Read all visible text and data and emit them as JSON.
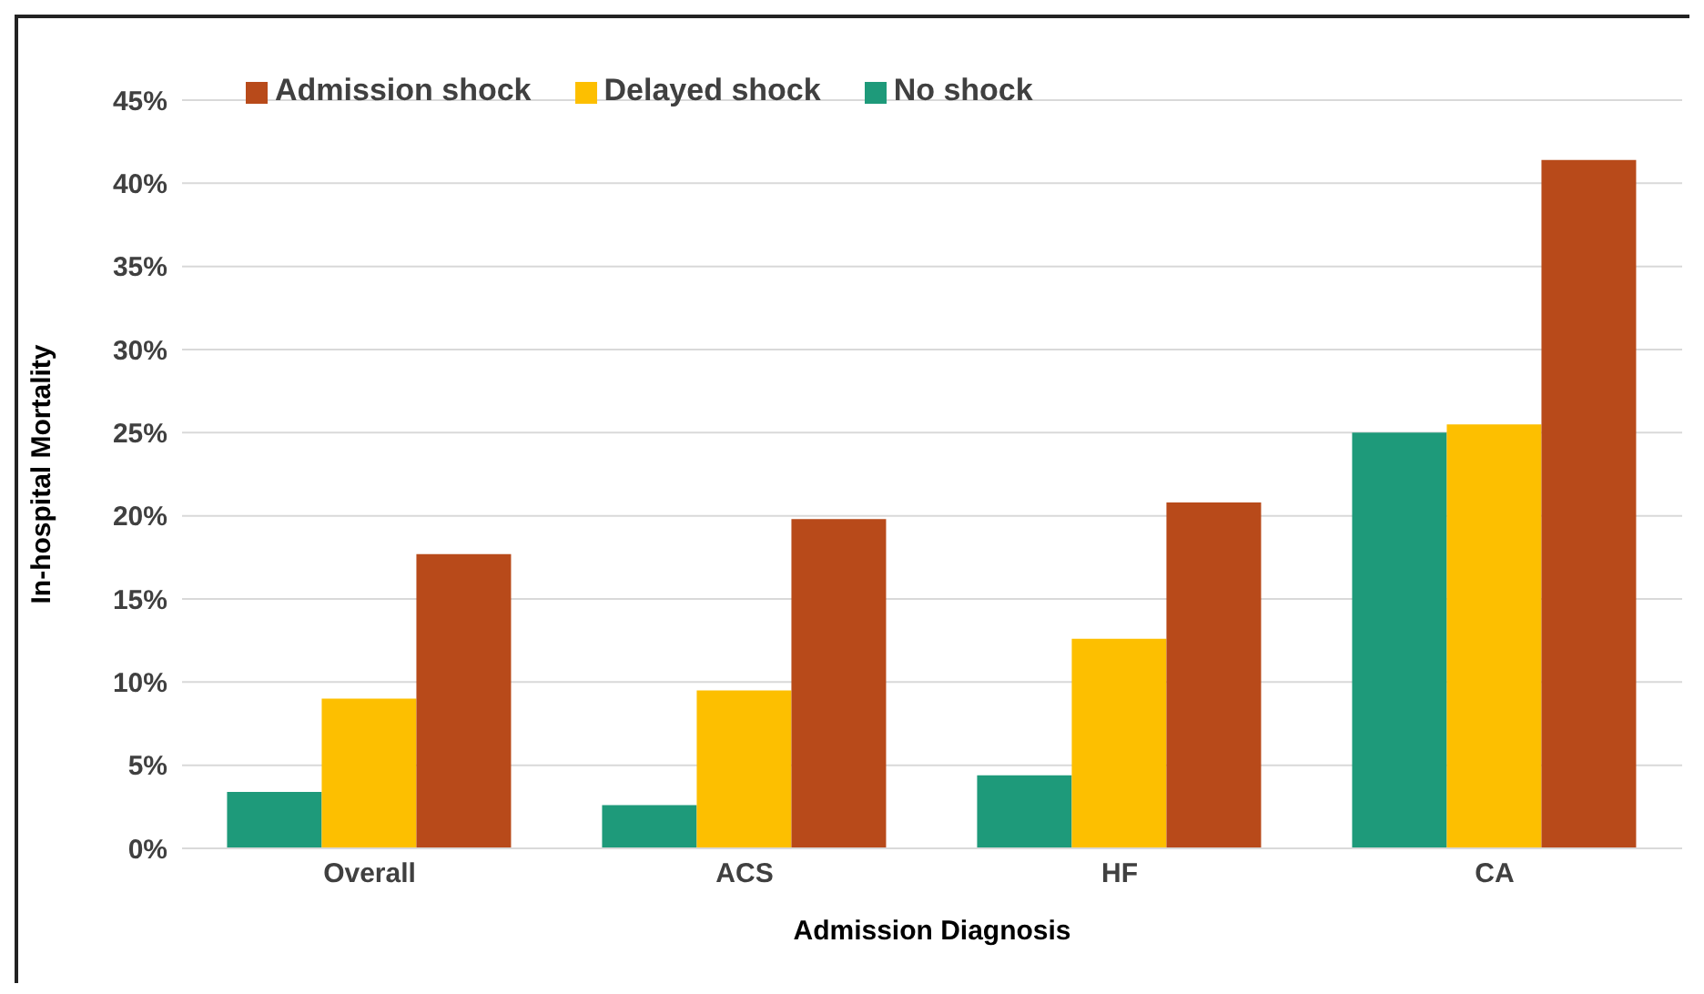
{
  "chart_data": {
    "type": "bar",
    "xlabel": "Admission Diagnosis",
    "ylabel": "In-hospital Mortality",
    "categories": [
      "Overall",
      "ACS",
      "HF",
      "CA"
    ],
    "series": [
      {
        "name": "No shock",
        "color": "#1e9a7a",
        "values": [
          3.4,
          2.6,
          4.4,
          25.0
        ]
      },
      {
        "name": "Delayed shock",
        "color": "#fdbf00",
        "values": [
          9.0,
          9.5,
          12.6,
          25.5
        ]
      },
      {
        "name": "Admission shock",
        "color": "#b84a1a",
        "values": [
          17.7,
          19.8,
          20.8,
          41.4
        ]
      }
    ],
    "ylim": [
      0,
      45
    ],
    "yticks": [
      {
        "value": 0,
        "label": "0%"
      },
      {
        "value": 5,
        "label": "5%"
      },
      {
        "value": 10,
        "label": "10%"
      },
      {
        "value": 15,
        "label": "15%"
      },
      {
        "value": 20,
        "label": "20%"
      },
      {
        "value": 25,
        "label": "25%"
      },
      {
        "value": 30,
        "label": "30%"
      },
      {
        "value": 35,
        "label": "35%"
      },
      {
        "value": 40,
        "label": "40%"
      },
      {
        "value": 45,
        "label": "45%"
      }
    ],
    "grid": "y",
    "legend": "top left"
  }
}
